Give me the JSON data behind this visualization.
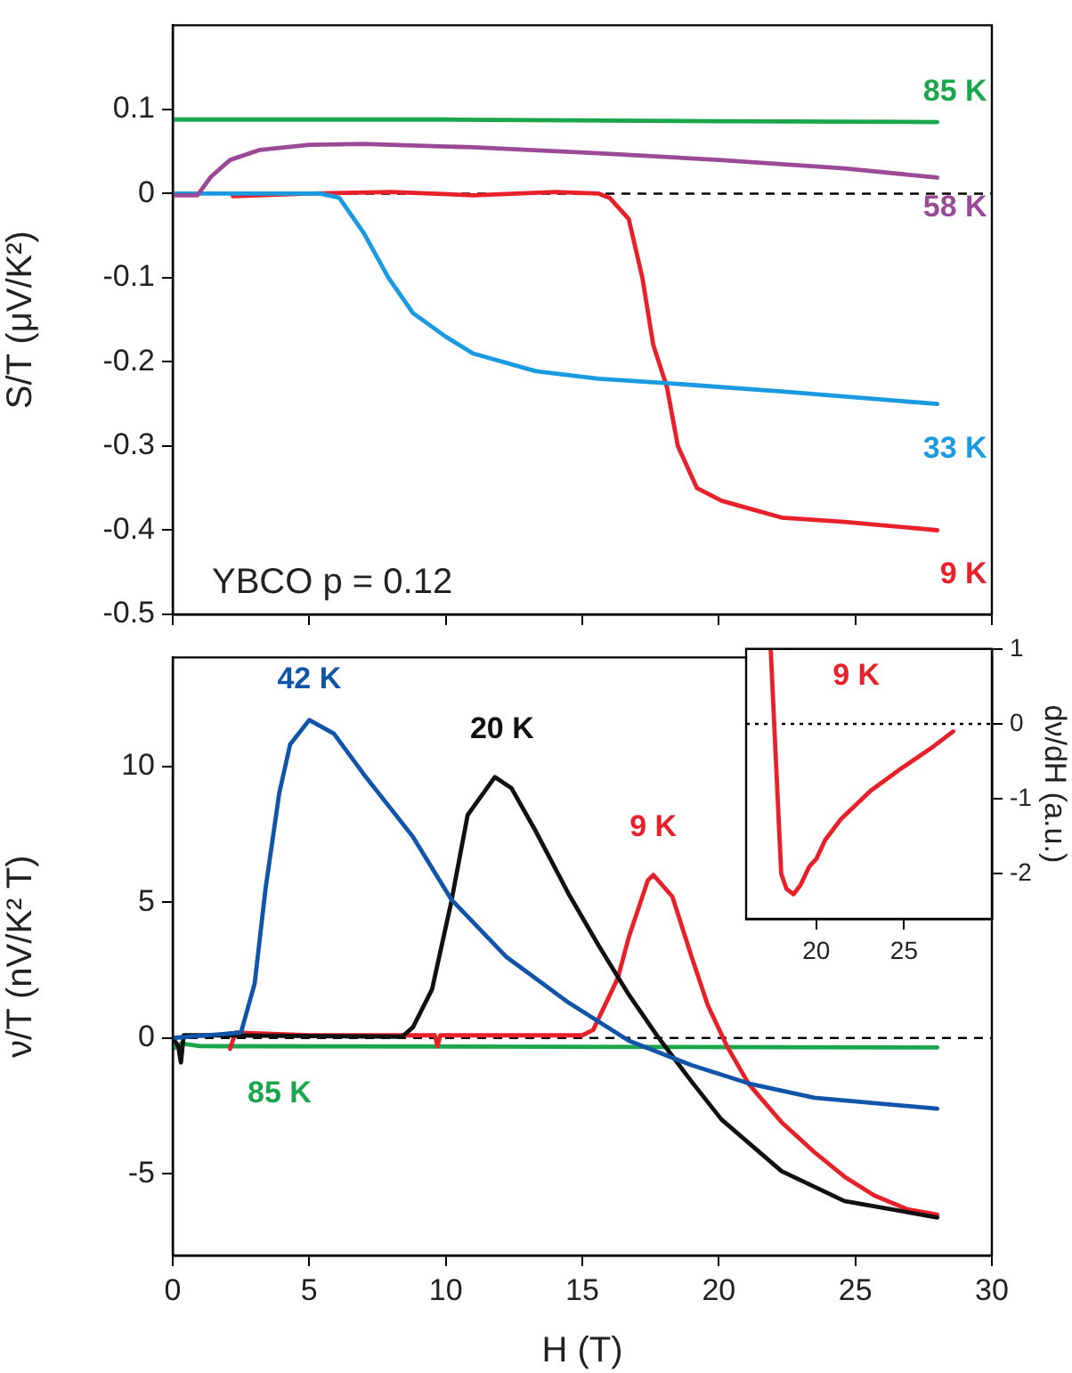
{
  "chart_data": [
    {
      "type": "line",
      "ylabel": "S/T (μV/K²)",
      "xlim": [
        0,
        30
      ],
      "xticks": [
        0,
        5,
        10,
        15,
        20,
        25,
        30
      ],
      "ylim": [
        -0.5,
        0.2
      ],
      "yticks": [
        -0.5,
        -0.4,
        -0.3,
        -0.2,
        -0.1,
        0,
        0.1
      ],
      "tick_labels": "y",
      "grid": false,
      "legend": false,
      "marker": "none",
      "annotations": [
        "YBCO p = 0.12"
      ],
      "ref_lines": [
        {
          "axis": "y",
          "value": 0,
          "line_style": "dashed",
          "color": "#000000"
        }
      ],
      "series": [
        {
          "name": "85 K",
          "color": "#1aa64a",
          "x": [
            0,
            10,
            20,
            28
          ],
          "values": [
            0.088,
            0.088,
            0.086,
            0.085
          ]
        },
        {
          "name": "58 K",
          "color": "#9b4a97",
          "x": [
            0,
            0.9,
            1.4,
            2.1,
            3.2,
            5,
            7,
            11,
            15.6,
            20,
            24.6,
            28
          ],
          "values": [
            -0.002,
            -0.002,
            0.02,
            0.04,
            0.052,
            0.058,
            0.059,
            0.055,
            0.048,
            0.04,
            0.03,
            0.019
          ]
        },
        {
          "name": "33 K",
          "color": "#1a9ae0",
          "x": [
            0,
            5.4,
            6.1,
            7,
            7.9,
            8.8,
            10,
            11,
            13.3,
            15.6,
            18,
            22.3,
            28
          ],
          "values": [
            0,
            0,
            -0.005,
            -0.047,
            -0.1,
            -0.142,
            -0.17,
            -0.19,
            -0.211,
            -0.22,
            -0.225,
            -0.235,
            -0.25
          ]
        },
        {
          "name": "9 K",
          "color": "#e8202a",
          "x": [
            2.2,
            5,
            8,
            11,
            14,
            15.6,
            16,
            16.7,
            17.2,
            17.6,
            18.1,
            18.5,
            19.2,
            20.1,
            21.2,
            22.3,
            24.6,
            28
          ],
          "values": [
            -0.003,
            0,
            0.002,
            -0.002,
            0.002,
            0,
            -0.005,
            -0.03,
            -0.1,
            -0.18,
            -0.23,
            -0.3,
            -0.35,
            -0.365,
            -0.375,
            -0.385,
            -0.39,
            -0.4
          ]
        }
      ]
    },
    {
      "type": "line",
      "xlabel": "H (T)",
      "ylabel": "ν/T (nV/K² T)",
      "xlim": [
        0,
        30
      ],
      "xticks": [
        0,
        5,
        10,
        15,
        20,
        25,
        30
      ],
      "ylim": [
        -8,
        14
      ],
      "yticks": [
        -5,
        0,
        5,
        10
      ],
      "grid": false,
      "legend": false,
      "marker": "none",
      "ref_lines": [
        {
          "axis": "y",
          "value": 0,
          "line_style": "dashed",
          "color": "#000000"
        }
      ],
      "series": [
        {
          "name": "42 K",
          "color": "#1155aa",
          "x": [
            0,
            2.5,
            3,
            3.4,
            3.9,
            4.3,
            5,
            5.9,
            7,
            8.8,
            10.2,
            12.2,
            14.5,
            16.7,
            19,
            21.2,
            23.5,
            28
          ],
          "values": [
            0,
            0.2,
            2,
            5.5,
            9,
            10.8,
            11.7,
            11.2,
            9.7,
            7.4,
            5.1,
            3,
            1.3,
            -0.1,
            -1,
            -1.7,
            -2.2,
            -2.6
          ]
        },
        {
          "name": "20 K",
          "color": "#111111",
          "x": [
            0,
            0.2,
            0.3,
            0.4,
            1,
            8.4,
            8.8,
            9.5,
            10.2,
            10.8,
            11.8,
            12.4,
            13.3,
            14.5,
            15.6,
            16.7,
            17.8,
            19,
            20.1,
            22.3,
            24.6,
            28
          ],
          "values": [
            0,
            -0.3,
            -0.9,
            0.1,
            0.1,
            0.05,
            0.4,
            1.8,
            5,
            8.2,
            9.6,
            9.2,
            7.6,
            5.3,
            3.4,
            1.6,
            0,
            -1.6,
            -3,
            -4.9,
            -6,
            -6.6
          ]
        },
        {
          "name": "9 K",
          "color": "#e8202a",
          "x": [
            2.1,
            2.3,
            5,
            9.6,
            9.7,
            9.8,
            15,
            15.4,
            16.3,
            16.7,
            17.4,
            17.6,
            18.3,
            19,
            19.6,
            20.3,
            21.1,
            22.3,
            23.5,
            24.6,
            25.7,
            26.9,
            28
          ],
          "values": [
            -0.4,
            0.2,
            0.1,
            0.1,
            -0.3,
            0.1,
            0.1,
            0.3,
            2.2,
            3.7,
            5.8,
            6,
            5.2,
            3,
            1.2,
            -0.3,
            -1.7,
            -3.1,
            -4.2,
            -5.1,
            -5.8,
            -6.3,
            -6.5
          ]
        },
        {
          "name": "85 K",
          "color": "#1aa64a",
          "x": [
            0,
            0.3,
            1,
            28
          ],
          "values": [
            -0.4,
            -0.2,
            -0.3,
            -0.35
          ]
        }
      ]
    },
    {
      "type": "line",
      "y2label": "dν/dH (a.u.)",
      "xlim": [
        16,
        30
      ],
      "xticks": [
        20,
        25
      ],
      "y2lim": [
        -2.6,
        1
      ],
      "y2ticks": [
        -2,
        -1,
        0,
        1
      ],
      "grid": false,
      "legend": false,
      "marker": "none",
      "ref_lines": [
        {
          "axis": "y2",
          "value": 0,
          "line_style": "dotted",
          "color": "#000000"
        }
      ],
      "series": [
        {
          "name": "9 K",
          "color": "#e8202a",
          "axis": "y2",
          "x": [
            17.4,
            17.6,
            17.8,
            18,
            18.3,
            18.7,
            19.1,
            19.6,
            20,
            20.5,
            21.4,
            23.1,
            24.8,
            26.5,
            27.8
          ],
          "values": [
            1,
            0,
            -1,
            -2,
            -2.2,
            -2.27,
            -2.15,
            -1.9,
            -1.8,
            -1.55,
            -1.27,
            -0.89,
            -0.6,
            -0.33,
            -0.1
          ]
        }
      ]
    }
  ]
}
